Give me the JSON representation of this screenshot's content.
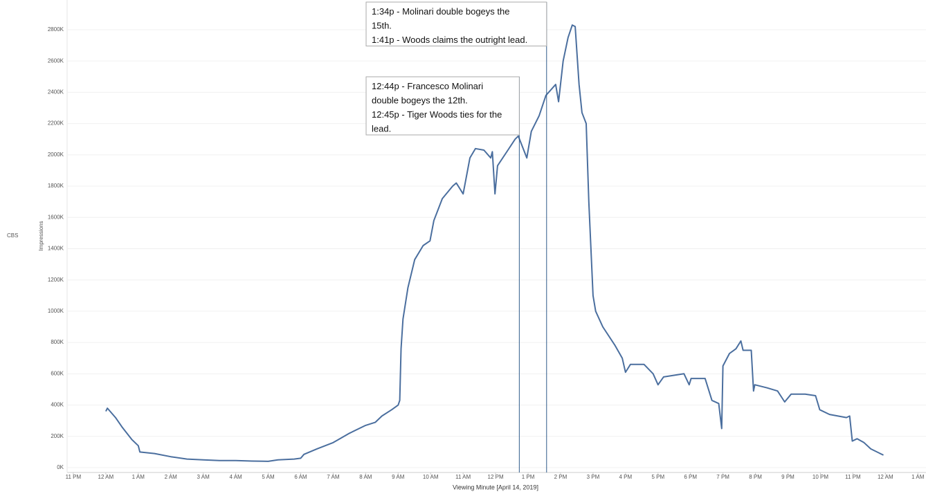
{
  "chart_data": {
    "type": "line",
    "y_axis_label": "Impressions",
    "row_label": "CBS",
    "x_axis_label": "Viewing Minute [April 14, 2019]",
    "xlim": [
      -1.19,
      25.25
    ],
    "ylim": [
      -31,
      2990
    ],
    "xticks": [
      {
        "value": -1,
        "label": "11 PM"
      },
      {
        "value": 0,
        "label": "12 AM"
      },
      {
        "value": 1,
        "label": "1 AM"
      },
      {
        "value": 2,
        "label": "2 AM"
      },
      {
        "value": 3,
        "label": "3 AM"
      },
      {
        "value": 4,
        "label": "4 AM"
      },
      {
        "value": 5,
        "label": "5 AM"
      },
      {
        "value": 6,
        "label": "6 AM"
      },
      {
        "value": 7,
        "label": "7 AM"
      },
      {
        "value": 8,
        "label": "8 AM"
      },
      {
        "value": 9,
        "label": "9 AM"
      },
      {
        "value": 10,
        "label": "10 AM"
      },
      {
        "value": 11,
        "label": "11 AM"
      },
      {
        "value": 12,
        "label": "12 PM"
      },
      {
        "value": 13,
        "label": "1 PM"
      },
      {
        "value": 14,
        "label": "2 PM"
      },
      {
        "value": 15,
        "label": "3 PM"
      },
      {
        "value": 16,
        "label": "4 PM"
      },
      {
        "value": 17,
        "label": "5 PM"
      },
      {
        "value": 18,
        "label": "6 PM"
      },
      {
        "value": 19,
        "label": "7 PM"
      },
      {
        "value": 20,
        "label": "8 PM"
      },
      {
        "value": 21,
        "label": "9 PM"
      },
      {
        "value": 22,
        "label": "10 PM"
      },
      {
        "value": 23,
        "label": "11 PM"
      },
      {
        "value": 24,
        "label": "12 AM"
      },
      {
        "value": 25,
        "label": "1 AM"
      }
    ],
    "yticks": [
      {
        "value": 0,
        "label": "0K"
      },
      {
        "value": 200,
        "label": "200K"
      },
      {
        "value": 400,
        "label": "400K"
      },
      {
        "value": 600,
        "label": "600K"
      },
      {
        "value": 800,
        "label": "800K"
      },
      {
        "value": 1000,
        "label": "1000K"
      },
      {
        "value": 1200,
        "label": "1200K"
      },
      {
        "value": 1400,
        "label": "1400K"
      },
      {
        "value": 1600,
        "label": "1600K"
      },
      {
        "value": 1800,
        "label": "1800K"
      },
      {
        "value": 2000,
        "label": "2000K"
      },
      {
        "value": 2200,
        "label": "2200K"
      },
      {
        "value": 2400,
        "label": "2400K"
      },
      {
        "value": 2600,
        "label": "2600K"
      },
      {
        "value": 2800,
        "label": "2800K"
      }
    ],
    "grid": true,
    "x": [
      0,
      0.05,
      0.3,
      0.5,
      0.8,
      1.0,
      1.05,
      1.5,
      2,
      2.5,
      3,
      3.5,
      4,
      4.5,
      5,
      5.3,
      5.8,
      6.0,
      6.1,
      6.5,
      7,
      7.5,
      8,
      8.3,
      8.5,
      8.8,
      9.0,
      9.05,
      9.09,
      9.15,
      9.3,
      9.51,
      9.77,
      9.98,
      10.1,
      10.36,
      10.68,
      10.79,
      11.0,
      11.21,
      11.38,
      11.64,
      11.85,
      11.9,
      11.98,
      12.06,
      12.38,
      12.6,
      12.7,
      12.96,
      13.1,
      13.34,
      13.55,
      13.85,
      13.94,
      14.08,
      14.23,
      14.36,
      14.45,
      14.57,
      14.66,
      14.79,
      14.87,
      15.0,
      15.08,
      15.3,
      15.68,
      15.9,
      16.0,
      16.15,
      16.57,
      16.85,
      17.0,
      17.17,
      17.8,
      17.96,
      18.02,
      18.45,
      18.66,
      18.87,
      18.96,
      19.0,
      19.2,
      19.4,
      19.55,
      19.62,
      19.87,
      19.94,
      19.98,
      20.36,
      20.68,
      20.9,
      21.1,
      21.53,
      21.85,
      21.98,
      22.28,
      22.8,
      22.9,
      22.98,
      23.13,
      23.34,
      23.55,
      23.94
    ],
    "series": [
      {
        "name": "Impressions",
        "color": "#4a6e9e",
        "values": [
          360,
          380,
          320,
          260,
          180,
          140,
          100,
          90,
          70,
          55,
          50,
          45,
          45,
          42,
          40,
          50,
          55,
          60,
          85,
          120,
          160,
          220,
          270,
          290,
          330,
          370,
          400,
          430,
          760,
          950,
          1150,
          1330,
          1420,
          1450,
          1580,
          1720,
          1800,
          1820,
          1750,
          1980,
          2040,
          2030,
          1980,
          2020,
          1750,
          1930,
          2030,
          2100,
          2120,
          1980,
          2150,
          2250,
          2380,
          2450,
          2340,
          2600,
          2750,
          2830,
          2820,
          2450,
          2270,
          2200,
          1700,
          1100,
          1000,
          900,
          780,
          700,
          610,
          660,
          660,
          600,
          530,
          580,
          600,
          530,
          570,
          570,
          430,
          410,
          250,
          650,
          730,
          760,
          810,
          750,
          750,
          490,
          530,
          510,
          490,
          420,
          470,
          470,
          460,
          370,
          340,
          320,
          330,
          170,
          185,
          160,
          120,
          80
        ]
      }
    ],
    "annotations": [
      {
        "x": 12.73,
        "lines": [
          "12:44p  - Francesco Molinari",
          "double bogeys the 12th.",
          "12:45p  - Tiger Woods ties for the",
          "lead."
        ]
      },
      {
        "x": 13.57,
        "lines": [
          "1:34p  - Molinari double bogeys the",
          "15th.",
          "1:41p  - Woods claims the outright lead."
        ]
      }
    ]
  }
}
